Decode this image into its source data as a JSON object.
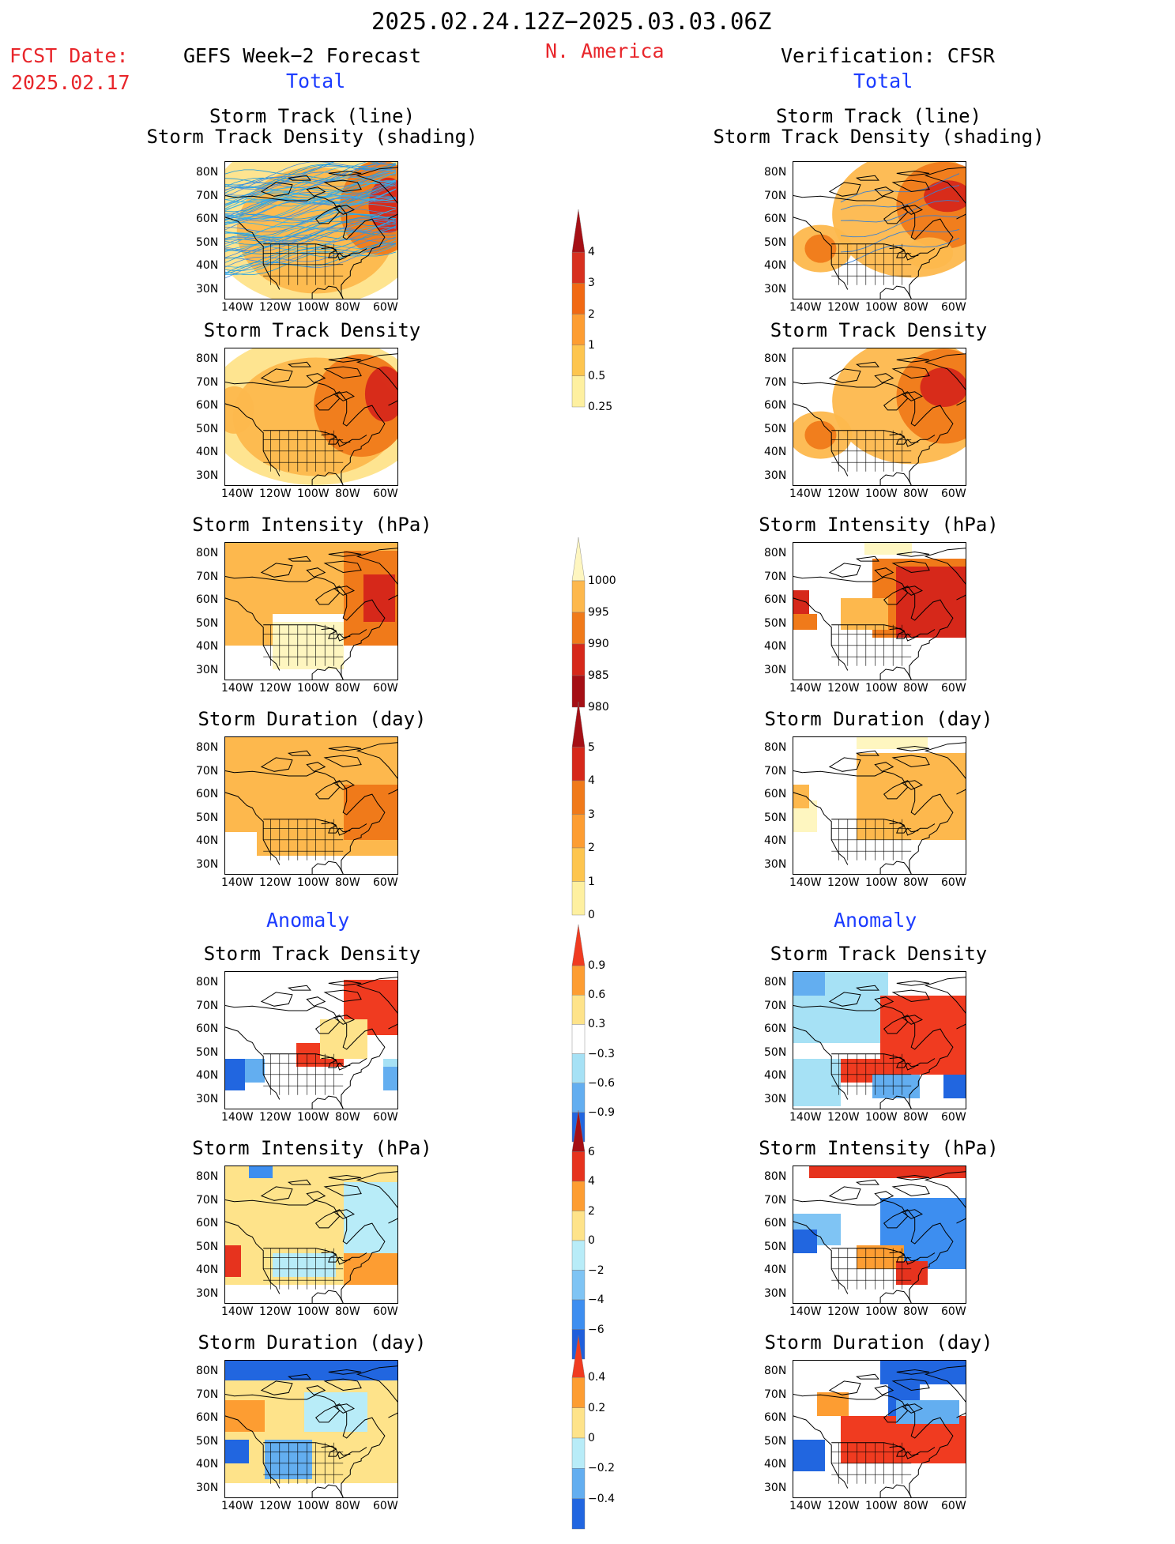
{
  "header": {
    "period": "2025.02.24.12Z−2025.03.03.06Z",
    "region": "N. America",
    "fcst_date_label": "FCST Date:",
    "fcst_date": "2025.02.17",
    "left_title": "GEFS Week−2 Forecast",
    "right_title": "Verification: CFSR"
  },
  "sections": {
    "total": "Total",
    "anomaly": "Anomaly"
  },
  "panels": {
    "track_line": "Storm Track (line)",
    "track_shading": "Storm Track Density (shading)",
    "track_density": "Storm Track Density",
    "intensity": "Storm Intensity (hPa)",
    "duration": "Storm Duration (day)"
  },
  "axes": {
    "lat": [
      "80N",
      "70N",
      "60N",
      "50N",
      "40N",
      "30N"
    ],
    "lon": [
      "140W",
      "120W",
      "100W",
      "80W",
      "60W"
    ]
  },
  "colorbars": [
    {
      "name": "track-density-total",
      "ticks": [
        "4",
        "3",
        "2",
        "1",
        "0.5",
        "0.25"
      ],
      "colors": [
        "#a50f15",
        "#d7301f",
        "#f16913",
        "#fd9d32",
        "#fdc54f",
        "#fef0a0"
      ]
    },
    {
      "name": "intensity-total",
      "ticks": [
        "1000",
        "995",
        "990",
        "985",
        "980"
      ],
      "colors": [
        "#fef6c0",
        "#fdb84d",
        "#f07a1a",
        "#d6281a",
        "#a50f15"
      ]
    },
    {
      "name": "duration-total",
      "ticks": [
        "5",
        "4",
        "3",
        "2",
        "1",
        "0"
      ],
      "colors": [
        "#a50f15",
        "#d6281a",
        "#f07a1a",
        "#fd9d32",
        "#fdc54f",
        "#fef0a0"
      ]
    },
    {
      "name": "track-density-anom",
      "ticks": [
        "0.9",
        "0.6",
        "0.3",
        "−0.3",
        "−0.6",
        "−0.9"
      ],
      "colors": [
        "#f03b20",
        "#fd9d32",
        "#fee38a",
        "#ffffff",
        "#a6e1f5",
        "#63aef0",
        "#2166e0"
      ]
    },
    {
      "name": "intensity-anom",
      "ticks": [
        "6",
        "4",
        "2",
        "0",
        "−2",
        "−4",
        "−6"
      ],
      "colors": [
        "#a50f15",
        "#e6331e",
        "#fd9d32",
        "#fee38a",
        "#b8ecf8",
        "#7fc4f4",
        "#3d8ef0",
        "#1f5fdc"
      ]
    },
    {
      "name": "duration-anom",
      "ticks": [
        "0.4",
        "0.2",
        "0",
        "−0.2",
        "−0.4"
      ],
      "colors": [
        "#f03b20",
        "#fd9d32",
        "#fee38a",
        "#b8ecf8",
        "#63aef0",
        "#2166e0"
      ]
    }
  ]
}
